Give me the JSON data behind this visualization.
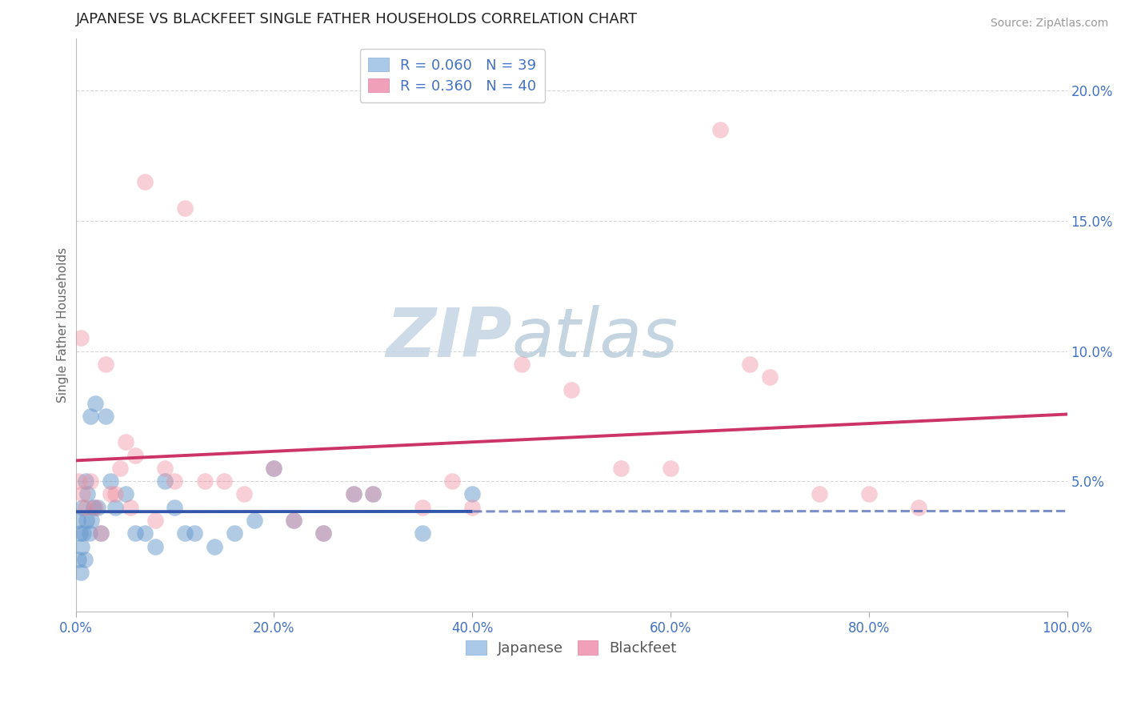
{
  "title": "JAPANESE VS BLACKFEET SINGLE FATHER HOUSEHOLDS CORRELATION CHART",
  "source": "Source: ZipAtlas.com",
  "ylabel": "Single Father Households",
  "watermark_zip": "ZIP",
  "watermark_atlas": "atlas",
  "legend_jp_R": 0.06,
  "legend_jp_N": 39,
  "legend_bk_R": 0.36,
  "legend_bk_N": 40,
  "japanese_x": [
    0.2,
    0.3,
    0.4,
    0.5,
    0.6,
    0.7,
    0.8,
    0.9,
    1.0,
    1.1,
    1.2,
    1.4,
    1.5,
    1.6,
    1.8,
    2.0,
    2.2,
    2.5,
    3.0,
    3.5,
    4.0,
    5.0,
    6.0,
    7.0,
    8.0,
    9.0,
    10.0,
    11.0,
    12.0,
    14.0,
    16.0,
    18.0,
    20.0,
    22.0,
    25.0,
    28.0,
    30.0,
    35.0,
    40.0
  ],
  "japanese_y": [
    3.5,
    2.0,
    3.0,
    1.5,
    2.5,
    4.0,
    3.0,
    2.0,
    5.0,
    3.5,
    4.5,
    3.0,
    7.5,
    3.5,
    4.0,
    8.0,
    4.0,
    3.0,
    7.5,
    5.0,
    4.0,
    4.5,
    3.0,
    3.0,
    2.5,
    5.0,
    4.0,
    3.0,
    3.0,
    2.5,
    3.0,
    3.5,
    5.5,
    3.5,
    3.0,
    4.5,
    4.5,
    3.0,
    4.5
  ],
  "blackfeet_x": [
    0.3,
    0.5,
    0.7,
    1.0,
    1.5,
    2.0,
    2.5,
    3.0,
    3.5,
    4.0,
    4.5,
    5.0,
    5.5,
    6.0,
    7.0,
    8.0,
    9.0,
    10.0,
    11.0,
    13.0,
    15.0,
    17.0,
    20.0,
    22.0,
    25.0,
    28.0,
    30.0,
    35.0,
    38.0,
    40.0,
    45.0,
    50.0,
    55.0,
    60.0,
    65.0,
    68.0,
    70.0,
    75.0,
    80.0,
    85.0
  ],
  "blackfeet_y": [
    5.0,
    10.5,
    4.5,
    4.0,
    5.0,
    4.0,
    3.0,
    9.5,
    4.5,
    4.5,
    5.5,
    6.5,
    4.0,
    6.0,
    16.5,
    3.5,
    5.5,
    5.0,
    15.5,
    5.0,
    5.0,
    4.5,
    5.5,
    3.5,
    3.0,
    4.5,
    4.5,
    4.0,
    5.0,
    4.0,
    9.5,
    8.5,
    5.5,
    5.5,
    18.5,
    9.5,
    9.0,
    4.5,
    4.5,
    4.0
  ],
  "ylim_pct": [
    0,
    22
  ],
  "xlim_pct": [
    0,
    100
  ],
  "yticks_pct": [
    0,
    5,
    10,
    15,
    20
  ],
  "xticks_pct": [
    0,
    20,
    40,
    60,
    80,
    100
  ],
  "bg_color": "#ffffff",
  "japanese_dot_color": "#6699cc",
  "blackfeet_dot_color": "#ee8899",
  "japanese_line_color": "#3355aa",
  "blackfeet_line_color": "#cc3366",
  "grid_color": "#cccccc",
  "title_color": "#222222",
  "axis_label_color": "#666666",
  "tick_color": "#4472c4",
  "watermark_color_zip": "#c5d5e5",
  "watermark_color_atlas": "#b0c8d8"
}
